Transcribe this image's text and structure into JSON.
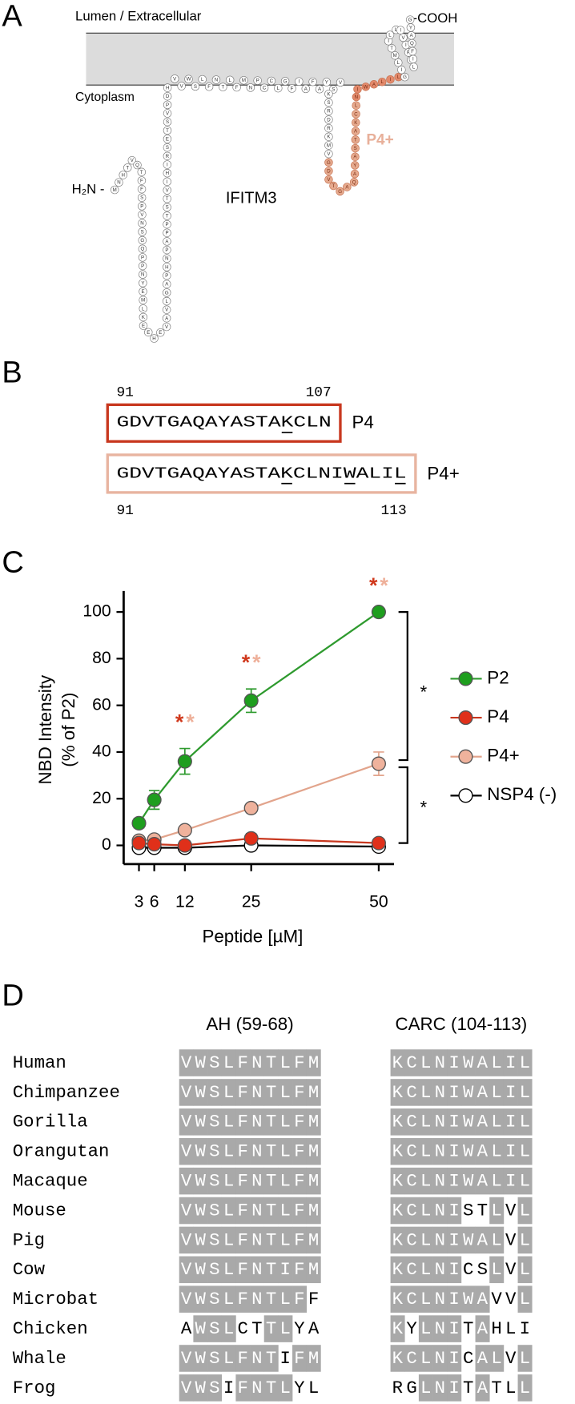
{
  "panels": {
    "a": "A",
    "b": "B",
    "c": "C",
    "d": "D"
  },
  "topology": {
    "lumen_label": "Lumen / Extracellular",
    "cytoplasm_label": "Cytoplasm",
    "n_terminus": "H₂N -",
    "c_terminus": "-COOH",
    "protein": "IFITM3",
    "region_label": "P4+",
    "sequence": "MNHTVQTFFSPVNSGQPPNYEMLKEEHEVAVLGAPHNPAPPTSTVIHIRSETSVPDHVVWSLFNTLFMNPCCLGFIAFAYSVKSRDRKMVGDVTGAQAYASTAKCLNIWALILGILMTILLIVIPVLIFQAYG"
  },
  "peptides": [
    {
      "name": "P4",
      "sequence": "GDVTGAQAYASTAKCLN",
      "start": 91,
      "end": 107,
      "underlined": [
        13
      ],
      "color": "#c8381f"
    },
    {
      "name": "P4+",
      "sequence": "GDVTGAQAYASTAKCLNIWALIL",
      "start": 91,
      "end": 113,
      "underlined": [
        13,
        18,
        22
      ],
      "color": "#e8b4a0"
    }
  ],
  "chart_data": {
    "type": "line",
    "ylabel": [
      "NBD Intensity",
      "(% of P2)"
    ],
    "xlabel": "Peptide [µM]",
    "x": [
      3,
      6,
      12,
      25,
      50
    ],
    "xlim": [
      0,
      53
    ],
    "xticks": [
      3,
      6,
      12,
      25,
      50
    ],
    "ylim": [
      -8,
      109
    ],
    "yticks": [
      0,
      20,
      40,
      60,
      80,
      100
    ],
    "series": [
      {
        "name": "P2",
        "color": "#1e9e1e",
        "line_color": "#2e9a2e",
        "values": [
          9.5,
          19.5,
          36,
          62,
          100
        ],
        "errors": [
          2,
          4,
          5.5,
          5,
          0
        ]
      },
      {
        "name": "P4",
        "color": "#e0301a",
        "line_color": "#c8381f",
        "values": [
          1,
          0.5,
          0,
          3,
          1
        ],
        "errors": [
          1,
          1,
          2,
          2,
          1
        ]
      },
      {
        "name": "P4+",
        "color": "#efb29c",
        "line_color": "#e2a48c",
        "values": [
          2,
          2.5,
          6.5,
          16,
          35
        ],
        "errors": [
          1,
          1,
          1,
          1,
          5
        ]
      },
      {
        "name": "NSP4 (-)",
        "color": "#ffffff",
        "line_color": "#000000",
        "values": [
          -1,
          -1,
          -1,
          0,
          -0.5
        ],
        "errors": [
          1,
          1,
          1,
          1,
          1
        ]
      }
    ],
    "significance": {
      "x": [
        12,
        25,
        50
      ],
      "labels": [
        "*",
        "*"
      ],
      "colors": [
        "#d0381c",
        "#eeb09a"
      ]
    },
    "brackets": [
      {
        "label": "*",
        "between": [
          0,
          2
        ]
      },
      {
        "label": "*",
        "between": [
          2,
          1
        ]
      }
    ]
  },
  "alignment": {
    "headers": [
      "AH (59-68)",
      "CARC (104-113)"
    ],
    "rows": [
      {
        "species": "Human",
        "ah": "VWSLFNTLFM",
        "ah_unshaded": [],
        "carc": "KCLNIWALIL",
        "carc_unshaded": []
      },
      {
        "species": "Chimpanzee",
        "ah": "VWSLFNTLFM",
        "ah_unshaded": [],
        "carc": "KCLNIWALIL",
        "carc_unshaded": []
      },
      {
        "species": "Gorilla",
        "ah": "VWSLFNTLFM",
        "ah_unshaded": [],
        "carc": "KCLNIWALIL",
        "carc_unshaded": []
      },
      {
        "species": "Orangutan",
        "ah": "VWSLFNTLFM",
        "ah_unshaded": [],
        "carc": "KCLNIWALIL",
        "carc_unshaded": []
      },
      {
        "species": "Macaque",
        "ah": "VWSLFNTLFM",
        "ah_unshaded": [],
        "carc": "KCLNIWALIL",
        "carc_unshaded": []
      },
      {
        "species": "Mouse",
        "ah": "VWSLFNTLFM",
        "ah_unshaded": [],
        "carc": "KCLNISTLVL",
        "carc_unshaded": [
          5,
          6,
          8
        ]
      },
      {
        "species": "Pig",
        "ah": "VWSLFNTLFM",
        "ah_unshaded": [],
        "carc": "KCLNIWALVL",
        "carc_unshaded": [
          8
        ]
      },
      {
        "species": "Cow",
        "ah": "VWSLFNTIFM",
        "ah_unshaded": [],
        "carc": "KCLNICSLVL",
        "carc_unshaded": [
          5,
          6,
          8
        ]
      },
      {
        "species": "Microbat",
        "ah": "VWSLFNTLFF",
        "ah_unshaded": [
          9
        ],
        "carc": "KCLNIWAVVL",
        "carc_unshaded": [
          7,
          8
        ]
      },
      {
        "species": "Chicken",
        "ah": "AWSLCTTLYA",
        "ah_unshaded": [
          0,
          4,
          5,
          8,
          9
        ],
        "carc": "KYLNITAHLI",
        "carc_unshaded": [
          1,
          5,
          7,
          8,
          9
        ]
      },
      {
        "species": "Whale",
        "ah": "VWSLFNTIFM",
        "ah_unshaded": [
          7
        ],
        "carc": "KCLNICALVL",
        "carc_unshaded": [
          5,
          8
        ]
      },
      {
        "species": "Frog",
        "ah": "VWSIFNTLYL",
        "ah_unshaded": [
          3,
          8,
          9
        ],
        "carc": "RGLNITATLL",
        "carc_unshaded": [
          0,
          1,
          5,
          7,
          8
        ]
      }
    ]
  }
}
